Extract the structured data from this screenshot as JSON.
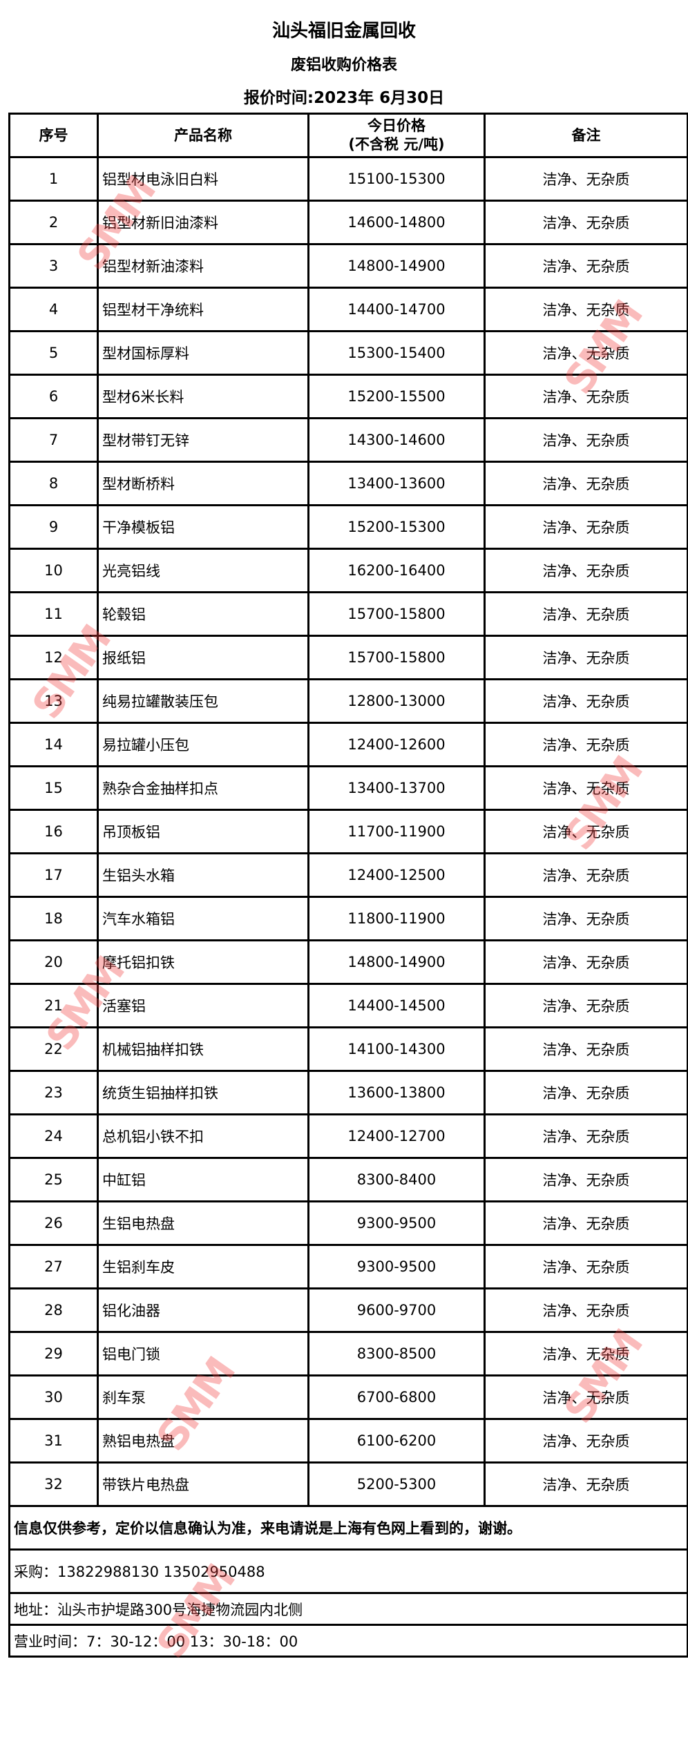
{
  "header": {
    "company": "汕头福旧金属回收",
    "subtitle": "废铝收购价格表",
    "date": "报价时间:2023年 6月30日"
  },
  "table": {
    "columns": [
      "序号",
      "产品名称",
      "今日价格",
      "(不含税 元/吨)",
      "备注"
    ],
    "rows": [
      {
        "no": "1",
        "name": "铝型材电泳旧白料",
        "price": "15100-15300",
        "note": "洁净、无杂质"
      },
      {
        "no": "2",
        "name": "铝型材新旧油漆料",
        "price": "14600-14800",
        "note": "洁净、无杂质"
      },
      {
        "no": "3",
        "name": "铝型材新油漆料",
        "price": "14800-14900",
        "note": "洁净、无杂质"
      },
      {
        "no": "4",
        "name": "铝型材干净统料",
        "price": "14400-14700",
        "note": "洁净、无杂质"
      },
      {
        "no": "5",
        "name": "型材国标厚料",
        "price": "15300-15400",
        "note": "洁净、无杂质"
      },
      {
        "no": "6",
        "name": "型材6米长料",
        "price": "15200-15500",
        "note": "洁净、无杂质"
      },
      {
        "no": "7",
        "name": "型材带钉无锌",
        "price": "14300-14600",
        "note": "洁净、无杂质"
      },
      {
        "no": "8",
        "name": "型材断桥料",
        "price": "13400-13600",
        "note": "洁净、无杂质"
      },
      {
        "no": "9",
        "name": "干净模板铝",
        "price": "15200-15300",
        "note": "洁净、无杂质"
      },
      {
        "no": "10",
        "name": "光亮铝线",
        "price": "16200-16400",
        "note": "洁净、无杂质"
      },
      {
        "no": "11",
        "name": "轮毂铝",
        "price": "15700-15800",
        "note": "洁净、无杂质"
      },
      {
        "no": "12",
        "name": "报纸铝",
        "price": "15700-15800",
        "note": "洁净、无杂质"
      },
      {
        "no": "13",
        "name": "纯易拉罐散装压包",
        "price": "12800-13000",
        "note": "洁净、无杂质"
      },
      {
        "no": "14",
        "name": "易拉罐小压包",
        "price": "12400-12600",
        "note": "洁净、无杂质"
      },
      {
        "no": "15",
        "name": "熟杂合金抽样扣点",
        "price": "13400-13700",
        "note": "洁净、无杂质"
      },
      {
        "no": "16",
        "name": "吊顶板铝",
        "price": "11700-11900",
        "note": "洁净、无杂质"
      },
      {
        "no": "17",
        "name": "生铝头水箱",
        "price": "12400-12500",
        "note": "洁净、无杂质"
      },
      {
        "no": "18",
        "name": "汽车水箱铝",
        "price": "11800-11900",
        "note": "洁净、无杂质"
      },
      {
        "no": "20",
        "name": "摩托铝扣铁",
        "price": "14800-14900",
        "note": "洁净、无杂质"
      },
      {
        "no": "21",
        "name": "活塞铝",
        "price": "14400-14500",
        "note": "洁净、无杂质"
      },
      {
        "no": "22",
        "name": "机械铝抽样扣铁",
        "price": "14100-14300",
        "note": "洁净、无杂质"
      },
      {
        "no": "23",
        "name": "统货生铝抽样扣铁",
        "price": "13600-13800",
        "note": "洁净、无杂质"
      },
      {
        "no": "24",
        "name": "总机铝小铁不扣",
        "price": "12400-12700",
        "note": "洁净、无杂质"
      },
      {
        "no": "25",
        "name": "中缸铝",
        "price": "8300-8400",
        "note": "洁净、无杂质"
      },
      {
        "no": "26",
        "name": "生铝电热盘",
        "price": "9300-9500",
        "note": "洁净、无杂质"
      },
      {
        "no": "27",
        "name": "生铝刹车皮",
        "price": "9300-9500",
        "note": "洁净、无杂质"
      },
      {
        "no": "28",
        "name": "铝化油器",
        "price": "9600-9700",
        "note": "洁净、无杂质"
      },
      {
        "no": "29",
        "name": "铝电门锁",
        "price": "8300-8500",
        "note": "洁净、无杂质"
      },
      {
        "no": "30",
        "name": "刹车泵",
        "price": "6700-6800",
        "note": "洁净、无杂质"
      },
      {
        "no": "31",
        "name": "熟铝电热盘",
        "price": "6100-6200",
        "note": "洁净、无杂质"
      },
      {
        "no": "32",
        "name": "带铁片电热盘",
        "price": "5200-5300",
        "note": "洁净、无杂质"
      }
    ]
  },
  "footer": {
    "notice": "信息仅供参考，定价以信息确认为准，来电请说是上海有色网上看到的，谢谢。",
    "purchase": "采购：13822988130   13502950488",
    "address": "地址：汕头市护堤路300号海捷物流园内北侧",
    "hours": "营业时间：7：30-12：00   13：30-18：00"
  },
  "watermark": {
    "text": "SMM",
    "color": "#f03c3c"
  }
}
